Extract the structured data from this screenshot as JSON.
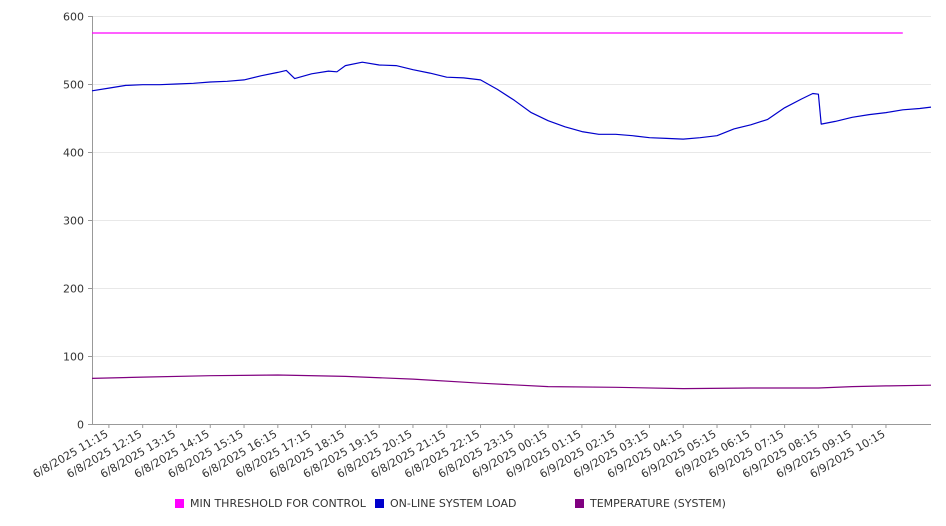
{
  "chart_data": {
    "type": "line",
    "ylim": [
      0,
      600
    ],
    "y_ticks": [
      0,
      100,
      200,
      300,
      400,
      500,
      600
    ],
    "grid": true,
    "legend_position": "bottom",
    "x_tick_labels": [
      "6/8/2025 11:15",
      "6/8/2025 12:15",
      "6/8/2025 13:15",
      "6/8/2025 14:15",
      "6/8/2025 15:15",
      "6/8/2025 16:15",
      "6/8/2025 17:15",
      "6/8/2025 18:15",
      "6/8/2025 19:15",
      "6/8/2025 20:15",
      "6/8/2025 21:15",
      "6/8/2025 22:15",
      "6/8/2025 23:15",
      "6/9/2025 00:15",
      "6/9/2025 01:15",
      "6/9/2025 02:15",
      "6/9/2025 03:15",
      "6/9/2025 04:15",
      "6/9/2025 05:15",
      "6/9/2025 06:15",
      "6/9/2025 07:15",
      "6/9/2025 08:15",
      "6/9/2025 09:15",
      "6/9/2025 10:15"
    ],
    "series": [
      {
        "name": "MIN THRESHOLD FOR CONTROL",
        "color": "#ff00ff",
        "points": [
          [
            "6/8/2025 10:45",
            575
          ],
          [
            "6/9/2025 10:45",
            575
          ]
        ]
      },
      {
        "name": "ON-LINE SYSTEM LOAD",
        "color": "#0000cc",
        "points": [
          [
            "6/8/2025 10:45",
            490
          ],
          [
            "6/8/2025 11:15",
            494
          ],
          [
            "6/8/2025 11:45",
            498
          ],
          [
            "6/8/2025 12:15",
            499
          ],
          [
            "6/8/2025 12:45",
            499
          ],
          [
            "6/8/2025 13:15",
            500
          ],
          [
            "6/8/2025 13:45",
            501
          ],
          [
            "6/8/2025 14:15",
            503
          ],
          [
            "6/8/2025 14:45",
            504
          ],
          [
            "6/8/2025 15:15",
            506
          ],
          [
            "6/8/2025 15:45",
            512
          ],
          [
            "6/8/2025 16:15",
            517
          ],
          [
            "6/8/2025 16:30",
            520
          ],
          [
            "6/8/2025 16:45",
            508
          ],
          [
            "6/8/2025 17:15",
            515
          ],
          [
            "6/8/2025 17:45",
            519
          ],
          [
            "6/8/2025 18:00",
            518
          ],
          [
            "6/8/2025 18:15",
            527
          ],
          [
            "6/8/2025 18:45",
            532
          ],
          [
            "6/8/2025 19:15",
            528
          ],
          [
            "6/8/2025 19:45",
            527
          ],
          [
            "6/8/2025 20:15",
            521
          ],
          [
            "6/8/2025 20:45",
            516
          ],
          [
            "6/8/2025 21:15",
            510
          ],
          [
            "6/8/2025 21:45",
            509
          ],
          [
            "6/8/2025 22:15",
            506
          ],
          [
            "6/8/2025 22:45",
            492
          ],
          [
            "6/8/2025 23:15",
            476
          ],
          [
            "6/8/2025 23:45",
            458
          ],
          [
            "6/9/2025 00:15",
            446
          ],
          [
            "6/9/2025 00:45",
            437
          ],
          [
            "6/9/2025 01:15",
            430
          ],
          [
            "6/9/2025 01:45",
            426
          ],
          [
            "6/9/2025 02:15",
            426
          ],
          [
            "6/9/2025 02:45",
            424
          ],
          [
            "6/9/2025 03:15",
            421
          ],
          [
            "6/9/2025 03:45",
            420
          ],
          [
            "6/9/2025 04:15",
            419
          ],
          [
            "6/9/2025 04:45",
            421
          ],
          [
            "6/9/2025 05:15",
            424
          ],
          [
            "6/9/2025 05:45",
            434
          ],
          [
            "6/9/2025 06:15",
            440
          ],
          [
            "6/9/2025 06:45",
            448
          ],
          [
            "6/9/2025 07:15",
            465
          ],
          [
            "6/9/2025 07:45",
            478
          ],
          [
            "6/9/2025 08:05",
            486
          ],
          [
            "6/9/2025 08:15",
            485
          ],
          [
            "6/9/2025 08:20",
            441
          ],
          [
            "6/9/2025 08:45",
            445
          ],
          [
            "6/9/2025 09:15",
            451
          ],
          [
            "6/9/2025 09:45",
            455
          ],
          [
            "6/9/2025 10:15",
            458
          ],
          [
            "6/9/2025 10:45",
            462
          ],
          [
            "6/9/2025 11:15",
            464
          ],
          [
            "6/9/2025 11:35",
            466
          ]
        ]
      },
      {
        "name": "TEMPERATURE (SYSTEM)",
        "color": "#800080",
        "points": [
          [
            "6/8/2025 10:45",
            67
          ],
          [
            "6/8/2025 12:15",
            69
          ],
          [
            "6/8/2025 14:15",
            71
          ],
          [
            "6/8/2025 16:15",
            72
          ],
          [
            "6/8/2025 18:15",
            70
          ],
          [
            "6/8/2025 20:15",
            66
          ],
          [
            "6/8/2025 22:15",
            60
          ],
          [
            "6/9/2025 00:15",
            55
          ],
          [
            "6/9/2025 02:15",
            54
          ],
          [
            "6/9/2025 04:15",
            52
          ],
          [
            "6/9/2025 06:15",
            53
          ],
          [
            "6/9/2025 08:15",
            53
          ],
          [
            "6/9/2025 09:15",
            55
          ],
          [
            "6/9/2025 10:15",
            56
          ],
          [
            "6/9/2025 11:35",
            57
          ]
        ]
      }
    ]
  }
}
